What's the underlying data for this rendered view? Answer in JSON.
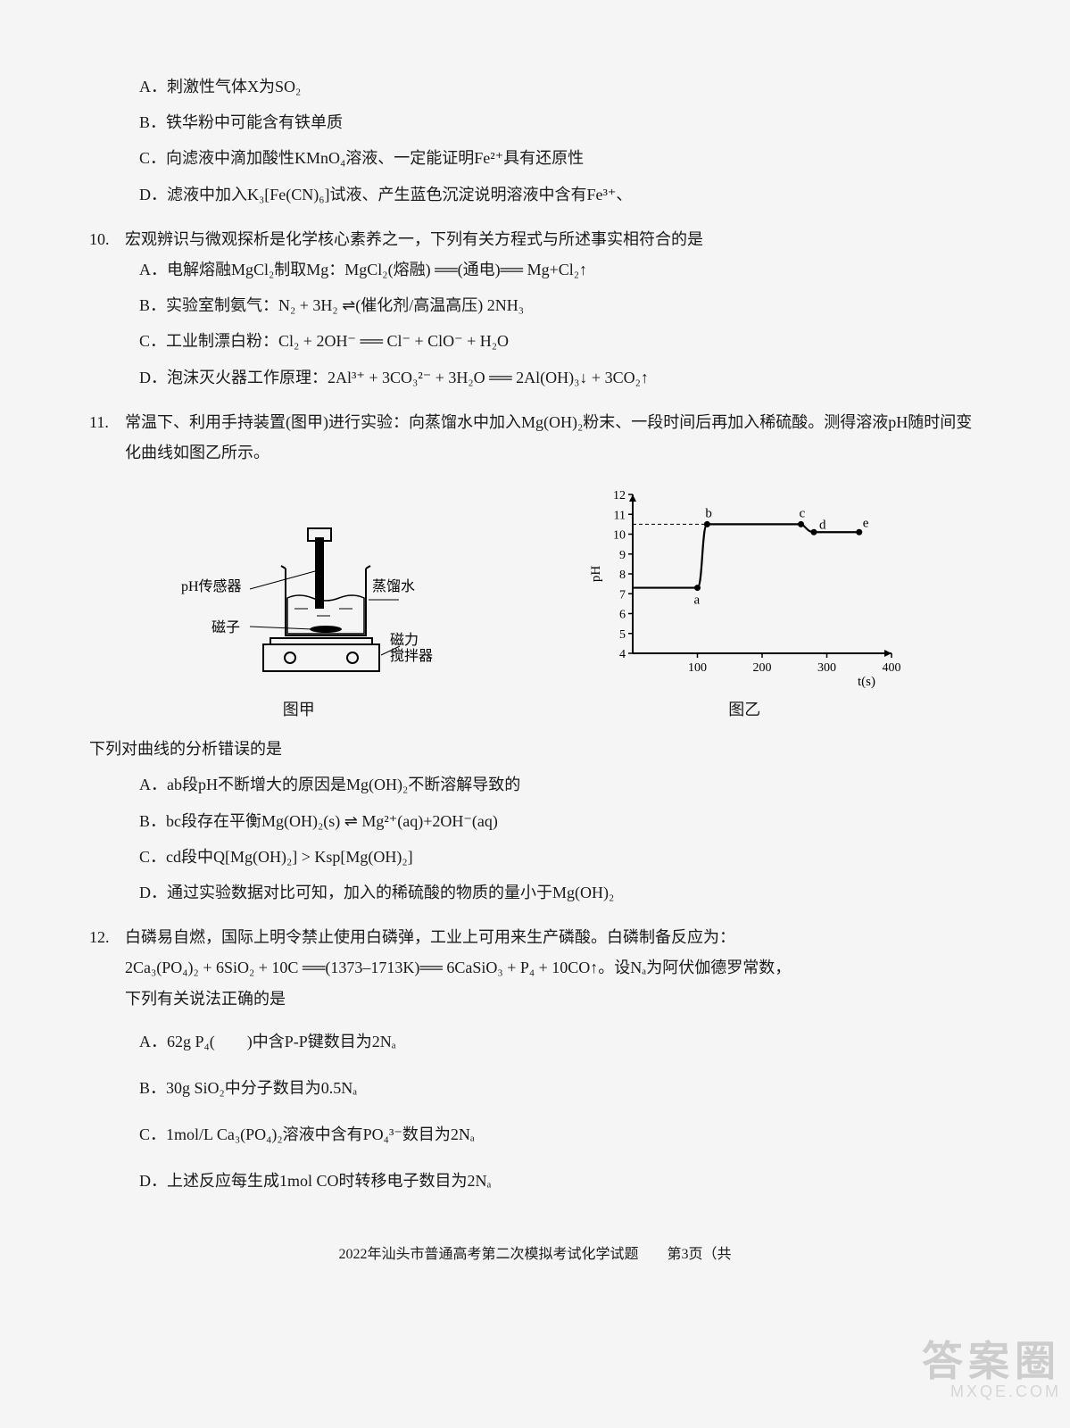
{
  "q9": {
    "optA": "A．刺激性气体X为SO₂",
    "optB": "B．铁华粉中可能含有铁单质",
    "optC": "C．向滤液中滴加酸性KMnO₄溶液、一定能证明Fe²⁺具有还原性",
    "optD": "D．滤液中加入K₃[Fe(CN)₆]试液、产生蓝色沉淀说明溶液中含有Fe³⁺、"
  },
  "q10": {
    "num": "10.",
    "stem": "宏观辨识与微观探析是化学核心素养之一，下列有关方程式与所述事实相符合的是",
    "optA": "A．电解熔融MgCl₂制取Mg：MgCl₂(熔融) ══(通电)══ Mg+Cl₂↑",
    "optB": "B．实验室制氨气：N₂ + 3H₂ ⇌(催化剂/高温高压) 2NH₃",
    "optC": "C．工业制漂白粉：Cl₂ + 2OH⁻ ══ Cl⁻ + ClO⁻ + H₂O",
    "optD": "D．泡沫灭火器工作原理：2Al³⁺ + 3CO₃²⁻ + 3H₂O ══ 2Al(OH)₃↓ + 3CO₂↑"
  },
  "q11": {
    "num": "11.",
    "stem": "常温下、利用手持装置(图甲)进行实验：向蒸馏水中加入Mg(OH)₂粉末、一段时间后再加入稀硫酸。测得溶液pH随时间变化曲线如图乙所示。",
    "postFig": "下列对曲线的分析错误的是",
    "optA": "A．ab段pH不断增大的原因是Mg(OH)₂不断溶解导致的",
    "optB": "B．bc段存在平衡Mg(OH)₂(s) ⇌ Mg²⁺(aq)+2OH⁻(aq)",
    "optC": "C．cd段中Q[Mg(OH)₂] > Ksp[Mg(OH)₂]",
    "optD": "D．通过实验数据对比可知，加入的稀硫酸的物质的量小于Mg(OH)₂",
    "fig1": {
      "caption": "图甲",
      "labels": {
        "sensor": "pH传感器",
        "magnet": "磁子",
        "water": "蒸馏水",
        "stirrer": "磁力\n搅拌器"
      },
      "colors": {
        "stroke": "#000000",
        "fill_water": "#d0e8ff",
        "fill_none": "none"
      }
    },
    "fig2": {
      "caption": "图乙",
      "xlabel": "t(s)",
      "ylabel": "pH",
      "xlim": [
        0,
        400
      ],
      "xtick_step": 100,
      "ylim": [
        4,
        12
      ],
      "ytick_step": 1,
      "dashed_top": 10.5,
      "points": {
        "a": {
          "t": 100,
          "pH": 7.3
        },
        "b": {
          "t": 115,
          "pH": 10.5
        },
        "c": {
          "t": 260,
          "pH": 10.5
        },
        "d": {
          "t": 280,
          "pH": 10.1
        },
        "e": {
          "t": 350,
          "pH": 10.1
        }
      },
      "colors": {
        "axis": "#000000",
        "line": "#000000",
        "bg": "#ffffff"
      }
    }
  },
  "q12": {
    "num": "12.",
    "stem1": "白磷易自燃，国际上明令禁止使用白磷弹，工业上可用来生产磷酸。白磷制备反应为：",
    "eqn": "2Ca₃(PO₄)₂ + 6SiO₂ + 10C ══(1373–1713K)══ 6CaSiO₃ + P₄ + 10CO↑。设Nₐ为阿伏伽德罗常数，",
    "stem2": "下列有关说法正确的是",
    "optA": "A．62g P₄(　　)中含P-P键数目为2Nₐ",
    "optB": "B．30g SiO₂中分子数目为0.5Nₐ",
    "optC": "C．1mol/L Ca₃(PO₄)₂溶液中含有PO₄³⁻数目为2Nₐ",
    "optD": "D．上述反应每生成1mol CO时转移电子数目为2Nₐ"
  },
  "footer": "2022年汕头市普通高考第二次模拟考试化学试题　　第3页（共",
  "watermark_br": {
    "main": "答案圈",
    "sub": "MXQE.COM"
  }
}
